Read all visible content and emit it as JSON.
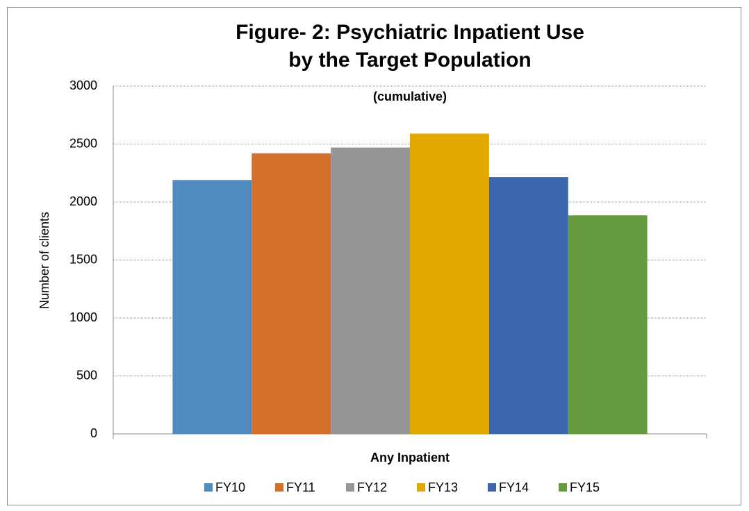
{
  "chart_data": {
    "type": "bar",
    "title": [
      "Figure- 2:  Psychiatric Inpatient Use",
      "by the Target Population"
    ],
    "subtitle": "(cumulative)",
    "y_label": "Number of clients",
    "categories": [
      "Any Inpatient"
    ],
    "series": [
      {
        "name": "FY10",
        "color": "#4f8bc0",
        "values": [
          2190
        ]
      },
      {
        "name": "FY11",
        "color": "#d4702c",
        "values": [
          2420
        ]
      },
      {
        "name": "FY12",
        "color": "#969696",
        "values": [
          2470
        ]
      },
      {
        "name": "FY13",
        "color": "#e2aa00",
        "values": [
          2590
        ]
      },
      {
        "name": "FY14",
        "color": "#3c66ae",
        "values": [
          2215
        ]
      },
      {
        "name": "FY15",
        "color": "#659c3f",
        "values": [
          1885
        ]
      }
    ],
    "ylim": [
      0,
      3000
    ],
    "yticks": [
      0,
      500,
      1000,
      1500,
      2000,
      2500,
      3000
    ],
    "grid": true,
    "legend": "bottom"
  }
}
